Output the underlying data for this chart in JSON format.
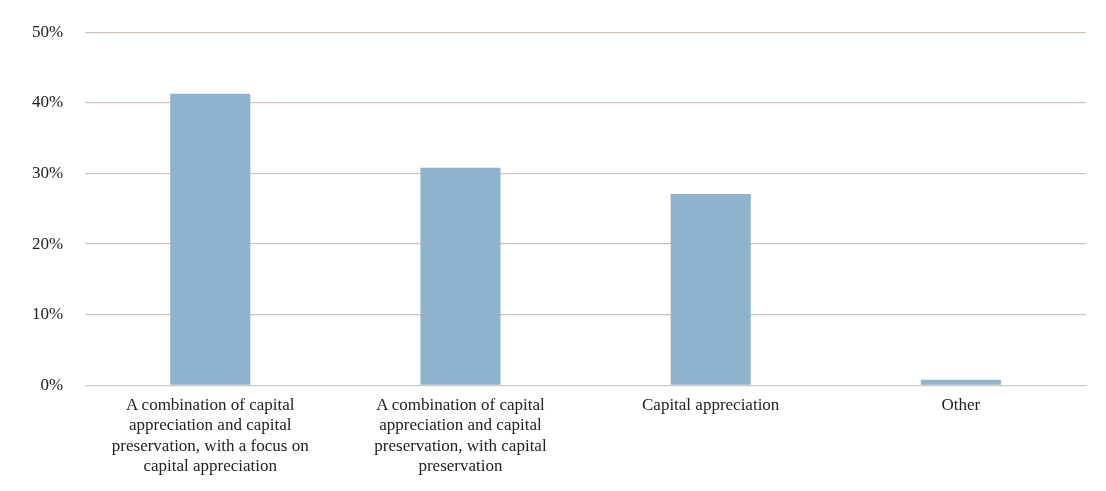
{
  "chart_data": {
    "type": "bar",
    "categories": [
      "A combination of capital appreciation and capital preservation, with a focus on capital appreciation",
      "A combination of capital appreciation and capital preservation, with capital preservation",
      "Capital appreciation",
      "Other"
    ],
    "values": [
      41.3,
      30.8,
      27.1,
      0.8
    ],
    "color": "#8fb3cc",
    "ylim": [
      0,
      50
    ],
    "yticks": [
      {
        "value": 0,
        "label": "0%"
      },
      {
        "value": 10,
        "label": "10%"
      },
      {
        "value": 20,
        "label": "20%"
      },
      {
        "value": 30,
        "label": "30%"
      },
      {
        "value": 40,
        "label": "40%"
      },
      {
        "value": 50,
        "label": "50%"
      }
    ],
    "grid": "y",
    "legend": false
  }
}
